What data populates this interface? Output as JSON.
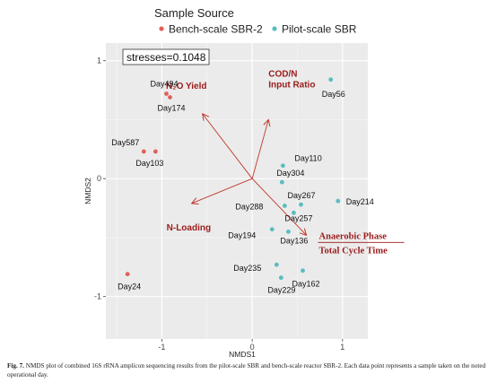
{
  "chart_data": {
    "type": "scatter",
    "legend": {
      "title": "Sample Source",
      "placement": "top",
      "entries": [
        {
          "name": "Bench-scale SBR-2",
          "color": "#e0605a"
        },
        {
          "name": "Pilot-scale SBR",
          "color": "#5bbcbf"
        }
      ]
    },
    "xlabel": "NMDS1",
    "ylabel": "NMDS2",
    "xlim": [
      -1.62,
      1.28
    ],
    "ylim": [
      -1.36,
      1.15
    ],
    "x_ticks": [
      -1,
      0,
      1
    ],
    "x_tick_labels": [
      "-1",
      "0",
      "1"
    ],
    "y_ticks": [
      -1,
      0,
      1
    ],
    "y_tick_labels": [
      "-1",
      "0",
      "1"
    ],
    "grid": true,
    "annotation": "stresses=0.1048",
    "series": [
      {
        "name": "Bench-scale SBR-2",
        "color": "#e0605a",
        "points": [
          {
            "label": "Day494",
            "x": -0.95,
            "y": 0.72
          },
          {
            "label": "Day174",
            "x": -0.91,
            "y": 0.69
          },
          {
            "label": "Day587",
            "x": -1.2,
            "y": 0.23
          },
          {
            "label": "Day103",
            "x": -1.07,
            "y": 0.23
          },
          {
            "label": "Day24",
            "x": -1.38,
            "y": -0.81
          }
        ]
      },
      {
        "name": "Pilot-scale SBR",
        "color": "#5bbcbf",
        "points": [
          {
            "label": "Day56",
            "x": 0.87,
            "y": 0.84
          },
          {
            "label": "Day110",
            "x": 0.34,
            "y": 0.11
          },
          {
            "label": "Day304",
            "x": 0.33,
            "y": -0.03
          },
          {
            "label": "Day267",
            "x": 0.54,
            "y": -0.22
          },
          {
            "label": "Day214",
            "x": 0.95,
            "y": -0.19
          },
          {
            "label": "Day288",
            "x": 0.36,
            "y": -0.23
          },
          {
            "label": "Day257",
            "x": 0.46,
            "y": -0.29
          },
          {
            "label": "Day194",
            "x": 0.22,
            "y": -0.43
          },
          {
            "label": "Day136",
            "x": 0.4,
            "y": -0.45
          },
          {
            "label": "Day235",
            "x": 0.27,
            "y": -0.73
          },
          {
            "label": "Day229",
            "x": 0.32,
            "y": -0.84
          },
          {
            "label": "Day162",
            "x": 0.56,
            "y": -0.78
          }
        ]
      }
    ],
    "vectors": [
      {
        "label": "N₂O Yield",
        "x": -0.55,
        "y": 0.55,
        "color": "#9b1b1b"
      },
      {
        "label_lines": [
          "COD/N",
          "Input Ratio"
        ],
        "x": 0.18,
        "y": 0.5,
        "color": "#9b1b1b"
      },
      {
        "label": "N-Loading",
        "x": -0.67,
        "y": -0.21,
        "color": "#9b1b1b"
      },
      {
        "label_lines": [
          "Anaerobic Phase",
          "Total Cycle Time"
        ],
        "fraction": true,
        "x": 0.6,
        "y": -0.48,
        "color": "#9b1b1b"
      }
    ]
  },
  "caption": {
    "fig": "Fig. 7.",
    "text": "NMDS plot of combined 16S rRNA amplicon sequencing results from the pilot-scale SBR and bench-scale reactor SBR-2. Each data point represents a sample taken on the noted operational day."
  }
}
